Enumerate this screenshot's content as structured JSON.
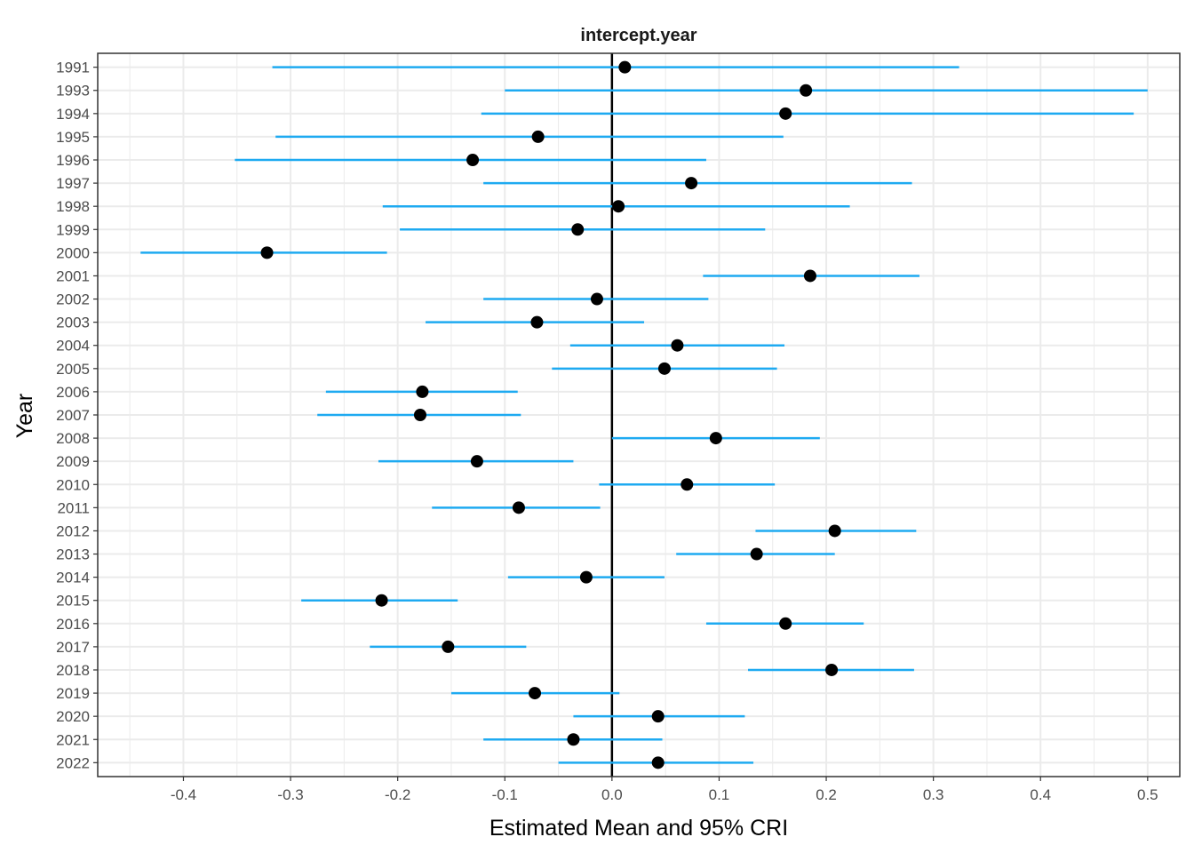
{
  "chart_data": {
    "type": "forest",
    "title": "intercept.year",
    "xlabel": "Estimated Mean and 95% CRI",
    "ylabel": "Year",
    "xlim": [
      -0.48,
      0.53
    ],
    "x_ticks": [
      -0.4,
      -0.3,
      -0.2,
      -0.1,
      0.0,
      0.1,
      0.2,
      0.3,
      0.4,
      0.5
    ],
    "x_tick_labels": [
      "-0.4",
      "-0.3",
      "-0.2",
      "-0.1",
      "0.0",
      "0.1",
      "0.2",
      "0.3",
      "0.4",
      "0.5"
    ],
    "reference_line": 0.0,
    "grid": true,
    "colors": {
      "interval": "#1eaaf1",
      "point": "#000000",
      "reference": "#000000",
      "grid": "#ebebeb",
      "border": "#333333"
    },
    "categories": [
      "1991",
      "1993",
      "1994",
      "1995",
      "1996",
      "1997",
      "1998",
      "1999",
      "2000",
      "2001",
      "2002",
      "2003",
      "2004",
      "2005",
      "2006",
      "2007",
      "2008",
      "2009",
      "2010",
      "2011",
      "2012",
      "2013",
      "2014",
      "2015",
      "2016",
      "2017",
      "2018",
      "2019",
      "2020",
      "2021",
      "2022"
    ],
    "mean": [
      0.012,
      0.181,
      0.162,
      -0.069,
      -0.13,
      0.074,
      0.006,
      -0.032,
      -0.322,
      0.185,
      -0.014,
      -0.07,
      0.061,
      0.049,
      -0.177,
      -0.179,
      0.097,
      -0.126,
      0.07,
      -0.087,
      0.208,
      0.135,
      -0.024,
      -0.215,
      0.162,
      -0.153,
      0.205,
      -0.072,
      0.043,
      -0.036,
      0.043
    ],
    "lower": [
      -0.317,
      -0.1,
      -0.122,
      -0.314,
      -0.352,
      -0.12,
      -0.214,
      -0.198,
      -0.44,
      0.085,
      -0.12,
      -0.174,
      -0.039,
      -0.056,
      -0.267,
      -0.275,
      0.0,
      -0.218,
      -0.012,
      -0.168,
      0.134,
      0.06,
      -0.097,
      -0.29,
      0.088,
      -0.226,
      0.127,
      -0.15,
      -0.036,
      -0.12,
      -0.05
    ],
    "upper": [
      0.324,
      0.5,
      0.487,
      0.16,
      0.088,
      0.28,
      0.222,
      0.143,
      -0.21,
      0.287,
      0.09,
      0.03,
      0.161,
      0.154,
      -0.088,
      -0.085,
      0.194,
      -0.036,
      0.152,
      -0.011,
      0.284,
      0.208,
      0.049,
      -0.144,
      0.235,
      -0.08,
      0.282,
      0.007,
      0.124,
      0.047,
      0.132
    ]
  }
}
